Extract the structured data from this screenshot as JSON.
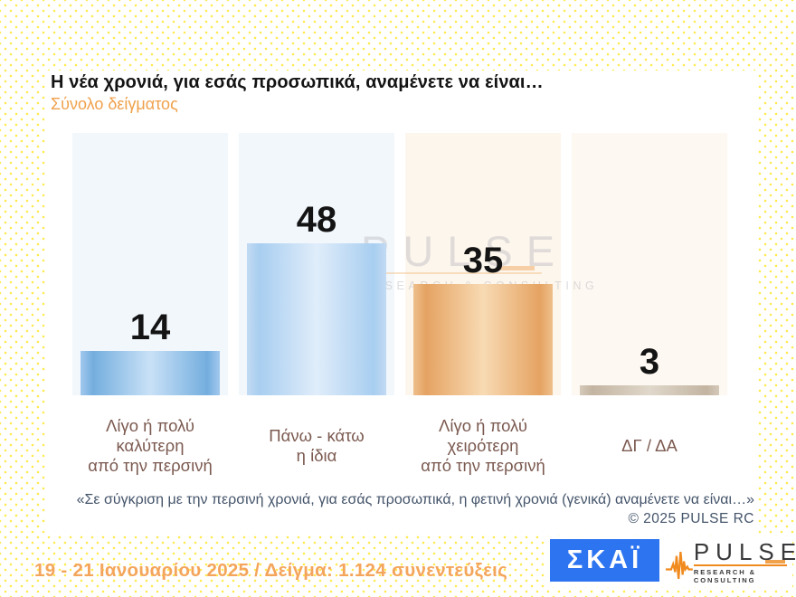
{
  "page": {
    "date_sample": "19 - 21 Ιανουαρίου 2025  /  Δείγμα:  1.124 συνεντεύξεις"
  },
  "card": {
    "title": "Η νέα χρονιά, για εσάς προσωπικά, αναμένετε να είναι…",
    "subtitle": "Σύνολο δείγματος",
    "note": "«Σε σύγκριση με την περσινή χρονιά, για εσάς προσωπικά, η φετινή χρονιά (γενικά) αναμένετε να είναι…»",
    "copyright": "© 2025  PULSE RC"
  },
  "chart_data": {
    "type": "bar",
    "title": "Η νέα χρονιά, για εσάς προσωπικά, αναμένετε να είναι…",
    "subtitle": "Σύνολο δείγματος",
    "categories": [
      "Λίγο ή πολύ\nκαλύτερη\nαπό την περσινή",
      "Πάνω - κάτω\nη ίδια",
      "Λίγο ή πολύ\nχειρότερη\nαπό την περσινή",
      "ΔΓ / ΔΑ"
    ],
    "values": [
      14,
      48,
      35,
      3
    ],
    "unit": "%",
    "ylim": [
      0,
      83
    ],
    "grid": false,
    "legend": false,
    "data_labels": true,
    "column_bg": [
      "#f2f7fc",
      "#f2f7fc",
      "#fdf6ed",
      "#fdf8f1"
    ],
    "bar_gradients": [
      [
        "#a2c8ee",
        "#74aede",
        "#c9e1f7"
      ],
      [
        "#c2daf3",
        "#a8cef0",
        "#e0edfa"
      ],
      [
        "#eec08d",
        "#e5a362",
        "#f8dab3"
      ],
      [
        "#d5c9ba",
        "#c3b4a1",
        "#e0d8cb"
      ]
    ]
  },
  "watermark": {
    "name": "PULSE",
    "tagline": "RESEARCH & CONSULTING"
  },
  "logos": {
    "skai": {
      "text": "ΣΚΑΪ",
      "bg": "#2d74f0"
    },
    "pulse": {
      "name": "PULSE",
      "tagline": "RESEARCH & CONSULTING"
    }
  },
  "colors": {
    "accent_orange": "#f0a14c",
    "label_brown": "#7b5a50",
    "note_slate": "#44546a",
    "date_orange": "#f4a55c",
    "skai_blue": "#2d74f0",
    "pulse_orange": "#f08a1e",
    "dot_yellow": "#ffe94f"
  }
}
